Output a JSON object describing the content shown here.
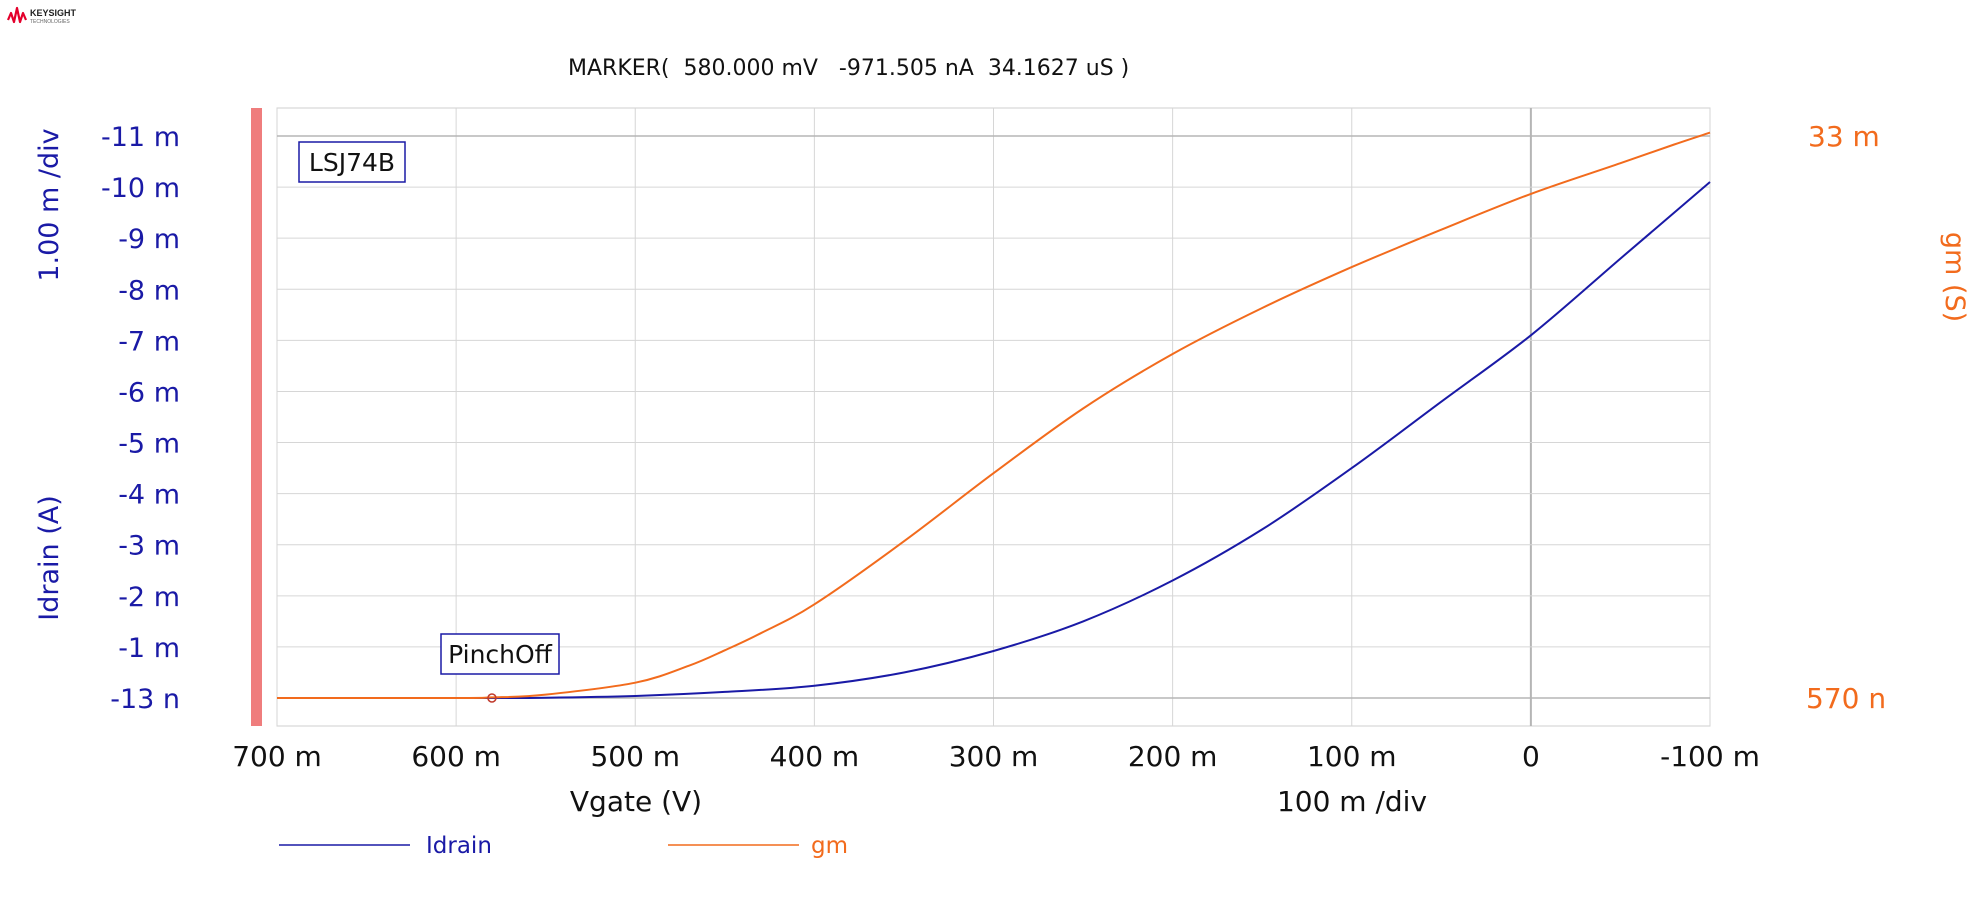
{
  "logo": {
    "text": "KEYSIGHT",
    "subtext": "TECHNOLOGIES",
    "icon": "keysight-wave-icon",
    "color": "#e4002b"
  },
  "marker": {
    "text": "MARKER(  580.000 mV   -971.505 nA  34.1627 uS )"
  },
  "device_label": "LSJ74B",
  "marker_label": "PinchOff",
  "left_axis": {
    "label": "Idrain (A)",
    "scale": "1.00 m /div",
    "ticks": [
      "-11 m",
      "-10 m",
      "-9 m",
      "-8 m",
      "-7 m",
      "-6 m",
      "-5 m",
      "-4 m",
      "-3 m",
      "-2 m",
      "-1 m",
      "-13 n"
    ],
    "color": "#1a1aa6"
  },
  "right_axis": {
    "label": "gm (S)",
    "top_tick": "33 m",
    "bottom_tick": "570 n",
    "color": "#f26b1d"
  },
  "x_axis": {
    "label": "Vgate (V)",
    "scale": "100 m /div",
    "ticks": [
      "700 m",
      "600 m",
      "500 m",
      "400 m",
      "300 m",
      "200 m",
      "100 m",
      "0",
      "-100 m"
    ]
  },
  "legend": [
    {
      "name": "Idrain",
      "color": "#1a1aa6"
    },
    {
      "name": "gm",
      "color": "#f26b1d"
    }
  ],
  "chart_data": {
    "type": "line",
    "title": "",
    "xlabel": "Vgate (V)",
    "ylabel": "Idrain (A)",
    "y2label": "gm (S)",
    "xlim": [
      0.7,
      -0.1
    ],
    "ylim": [
      -1.3e-08,
      -0.0115
    ],
    "y2lim": [
      5.7e-07,
      0.0346
    ],
    "grid": true,
    "legend_position": "bottom",
    "marker": {
      "x": 0.58,
      "y": -9.71505e-07,
      "y2": 3.41627e-05
    },
    "series": [
      {
        "name": "Idrain",
        "axis": "left",
        "color": "#1a1aa6",
        "x": [
          0.7,
          0.65,
          0.6,
          0.58,
          0.55,
          0.5,
          0.45,
          0.4,
          0.35,
          0.3,
          0.25,
          0.2,
          0.15,
          0.1,
          0.05,
          0.0,
          -0.05,
          -0.1
        ],
        "y": [
          -1.3e-08,
          -2e-08,
          -2e-07,
          -9.71505e-07,
          -5e-06,
          -4e-05,
          -0.00012,
          -0.00024,
          -0.0005,
          -0.00092,
          -0.0015,
          -0.0023,
          -0.0033,
          -0.0045,
          -0.0058,
          -0.0071,
          -0.0086,
          -0.0101
        ]
      },
      {
        "name": "gm",
        "axis": "right",
        "color": "#f26b1d",
        "x": [
          0.7,
          0.6,
          0.58,
          0.55,
          0.5,
          0.47,
          0.45,
          0.43,
          0.4,
          0.35,
          0.3,
          0.25,
          0.2,
          0.15,
          0.1,
          0.05,
          0.0,
          -0.05,
          -0.08,
          -0.1
        ],
        "y": [
          5.7e-07,
          2e-06,
          3.41627e-05,
          0.0002,
          0.0009,
          0.0019,
          0.0028,
          0.0038,
          0.0055,
          0.0092,
          0.0132,
          0.017,
          0.0202,
          0.0229,
          0.0253,
          0.0275,
          0.0296,
          0.0314,
          0.0325,
          0.0332
        ]
      }
    ]
  }
}
